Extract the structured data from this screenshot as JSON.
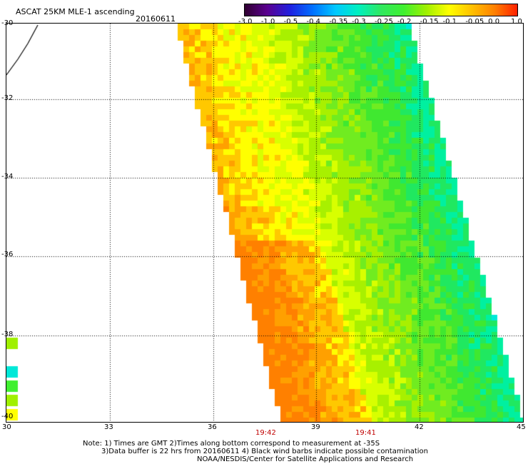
{
  "header": {
    "title": "ASCAT 25KM MLE-1 ascending",
    "date": "20160611"
  },
  "colorbar": {
    "labels": [
      "-3.0",
      "-1.0",
      "-0.5",
      "-0.4",
      "-0.35",
      "-0.3",
      "-0.25",
      "-0.2",
      "-0.15",
      "-0.1",
      "-0.05",
      "0.0",
      "1.0"
    ],
    "colors": [
      "#300030",
      "#5a0090",
      "#2020e0",
      "#0070ff",
      "#00c8ff",
      "#00f0c0",
      "#30e860",
      "#40f030",
      "#a0f000",
      "#ffff00",
      "#ffc000",
      "#ff8000",
      "#ff2000"
    ]
  },
  "map": {
    "lat_labels": [
      "-30",
      "-32",
      "-34",
      "-36",
      "-38",
      "-40"
    ],
    "lon_labels": [
      "30",
      "33",
      "36",
      "39",
      "42",
      "45"
    ],
    "pass_times": [
      "19:42",
      "19:41"
    ]
  },
  "notes": {
    "line1": "Note: 1) Times are GMT 2)Times along bottom correspond to measurement at -35S",
    "line2": "3)Data buffer is 22 hrs from 20160611 4) Black wind barbs indicate possible contamination",
    "line3": "NOAA/NESDIS/Center for Satellite Applications and Research"
  }
}
